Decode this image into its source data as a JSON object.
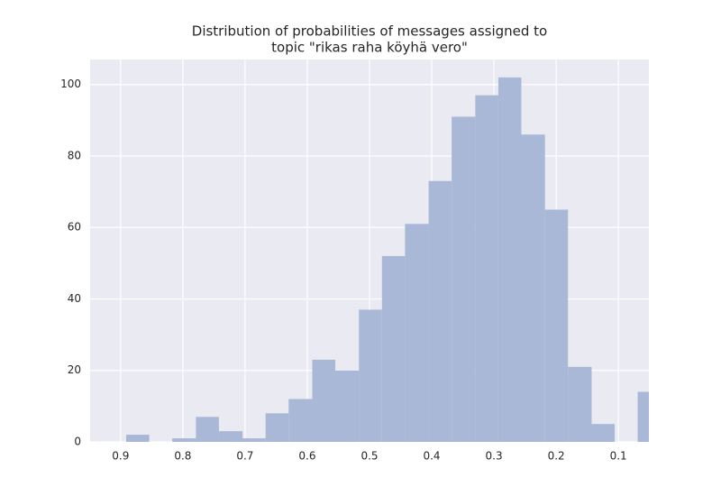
{
  "chart_data": {
    "type": "histogram",
    "title": [
      "Distribution of probabilities of messages assigned to",
      "topic \"rikas raha köyhä vero\""
    ],
    "bins": [
      0.031,
      0.069,
      0.106,
      0.143,
      0.181,
      0.218,
      0.256,
      0.293,
      0.33,
      0.368,
      0.405,
      0.443,
      0.48,
      0.517,
      0.555,
      0.592,
      0.63,
      0.667,
      0.704,
      0.742,
      0.779,
      0.817,
      0.854,
      0.891
    ],
    "values": [
      14,
      0,
      5,
      21,
      65,
      86,
      102,
      97,
      91,
      73,
      61,
      52,
      37,
      20,
      23,
      12,
      8,
      1,
      3,
      7,
      1,
      0,
      2
    ],
    "color": "#a9b8d7",
    "xlim": [
      0.949,
      0.051
    ],
    "xticks": [
      0.9,
      0.8,
      0.7,
      0.6,
      0.5,
      0.4,
      0.3,
      0.2,
      0.1
    ],
    "ylim": [
      0,
      107
    ],
    "yticks": [
      0,
      20,
      40,
      60,
      80,
      100
    ],
    "grid": true
  }
}
